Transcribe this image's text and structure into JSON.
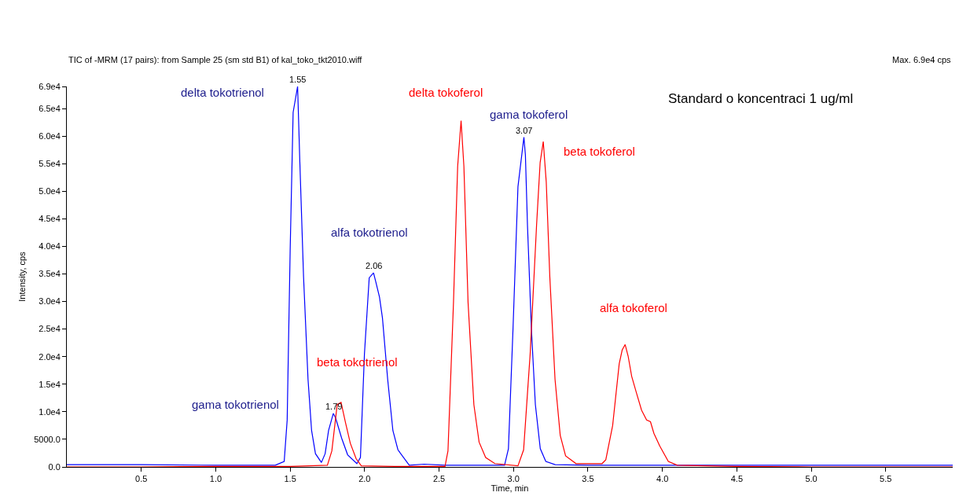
{
  "chart_data": {
    "type": "line",
    "title": "TIC of -MRM (17 pairs): from Sample 25 (sm std B1) of kal_toko_tkt2010.wiff",
    "subtitle": "Max. 6.9e4 cps",
    "xlabel": "Time, min",
    "ylabel": "Intensity, cps",
    "series": [
      {
        "color": "#0000ff",
        "x": [
          0.0,
          0.5,
          1.0,
          1.4,
          1.46,
          1.48,
          1.5,
          1.52,
          1.55,
          1.565,
          1.59,
          1.62,
          1.644,
          1.67,
          1.71,
          1.735,
          1.758,
          1.79,
          1.805,
          1.846,
          1.886,
          1.948,
          1.972,
          1.999,
          2.031,
          2.06,
          2.075,
          2.1,
          2.12,
          2.155,
          2.19,
          2.224,
          2.3,
          2.4,
          2.54,
          2.94,
          2.966,
          2.997,
          3.03,
          3.07,
          3.08,
          3.094,
          3.12,
          3.147,
          3.18,
          3.217,
          3.28,
          3.5,
          4.0,
          5.0,
          5.95
        ],
        "values": [
          400,
          400,
          300,
          300,
          1000,
          8500,
          39200,
          64300,
          69000,
          55400,
          34500,
          15900,
          6600,
          2400,
          800,
          2400,
          6600,
          9700,
          8900,
          5200,
          2200,
          600,
          1700,
          20500,
          34300,
          35200,
          33600,
          30800,
          27000,
          15900,
          6600,
          3100,
          300,
          500,
          300,
          300,
          3300,
          25200,
          50800,
          59800,
          56600,
          43800,
          25200,
          11300,
          3300,
          1000,
          400,
          300,
          300,
          300,
          300
        ]
      },
      {
        "color": "#ff0000",
        "x": [
          0.0,
          0.5,
          1.0,
          1.5,
          1.75,
          1.78,
          1.816,
          1.842,
          1.872,
          1.904,
          1.943,
          1.978,
          2.2,
          2.54,
          2.56,
          2.597,
          2.625,
          2.648,
          2.667,
          2.695,
          2.734,
          2.769,
          2.813,
          2.875,
          3.03,
          3.068,
          3.112,
          3.155,
          3.179,
          3.2,
          3.22,
          3.244,
          3.279,
          3.314,
          3.35,
          3.42,
          3.595,
          3.62,
          3.666,
          3.71,
          3.73,
          3.75,
          3.77,
          3.794,
          3.824,
          3.86,
          3.894,
          3.92,
          3.943,
          3.982,
          4.04,
          4.1,
          4.5,
          5.0,
          5.95
        ],
        "values": [
          0,
          0,
          100,
          100,
          300,
          2900,
          11300,
          11700,
          8000,
          4300,
          1500,
          200,
          100,
          100,
          2900,
          29800,
          54500,
          62800,
          54500,
          29800,
          11300,
          4500,
          1700,
          600,
          200,
          3100,
          20500,
          43800,
          55200,
          59000,
          51700,
          34500,
          15900,
          5700,
          2000,
          600,
          600,
          1300,
          7500,
          18700,
          21200,
          22200,
          20100,
          16400,
          13600,
          10300,
          8500,
          8200,
          6100,
          3800,
          1000,
          300,
          100,
          0,
          0
        ]
      }
    ],
    "xlim": [
      0,
      5.95
    ],
    "xticks": [
      0.5,
      {
        "value": 1,
        "label": "1.0"
      },
      1.5,
      {
        "value": 2,
        "label": "2.0"
      },
      2.5,
      {
        "value": 3,
        "label": "3.0"
      },
      3.5,
      {
        "value": 4,
        "label": "4.0"
      },
      4.5,
      {
        "value": 5,
        "label": "5.0"
      },
      5.5
    ],
    "ylim": [
      0,
      69000
    ],
    "yticks": [
      {
        "value": 0,
        "label": "0.0"
      },
      {
        "value": 5000,
        "label": "5000.0"
      },
      {
        "value": 10000,
        "label": "1.0e4"
      },
      {
        "value": 15000,
        "label": "1.5e4"
      },
      {
        "value": 20000,
        "label": "2.0e4"
      },
      {
        "value": 25000,
        "label": "2.5e4"
      },
      {
        "value": 30000,
        "label": "3.0e4"
      },
      {
        "value": 35000,
        "label": "3.5e4"
      },
      {
        "value": 40000,
        "label": "4.0e4"
      },
      {
        "value": 45000,
        "label": "4.5e4"
      },
      {
        "value": 50000,
        "label": "5.0e4"
      },
      {
        "value": 55000,
        "label": "5.5e4"
      },
      {
        "value": 60000,
        "label": "6.0e4"
      },
      {
        "value": 65000,
        "label": "6.5e4"
      },
      {
        "value": 69000,
        "label": "6.9e4"
      }
    ],
    "marker": "none",
    "line_style": "solid",
    "annotations": [
      "Standard o koncentraci 1 ug/ml",
      {
        "text": "1.55",
        "x": 1.55,
        "y": 69000
      },
      {
        "text": "1.79",
        "x": 1.79,
        "y": 9700
      },
      {
        "text": "2.06",
        "x": 2.06,
        "y": 35200
      },
      {
        "text": "3.07",
        "x": 3.07,
        "y": 59800
      },
      "delta tokotrienol",
      "gama tokotrienol",
      "alfa tokotrienol",
      "gama tokoferol",
      "beta tokotrienol",
      "delta tokoferol",
      "beta tokoferol",
      "alfa tokoferol"
    ]
  }
}
